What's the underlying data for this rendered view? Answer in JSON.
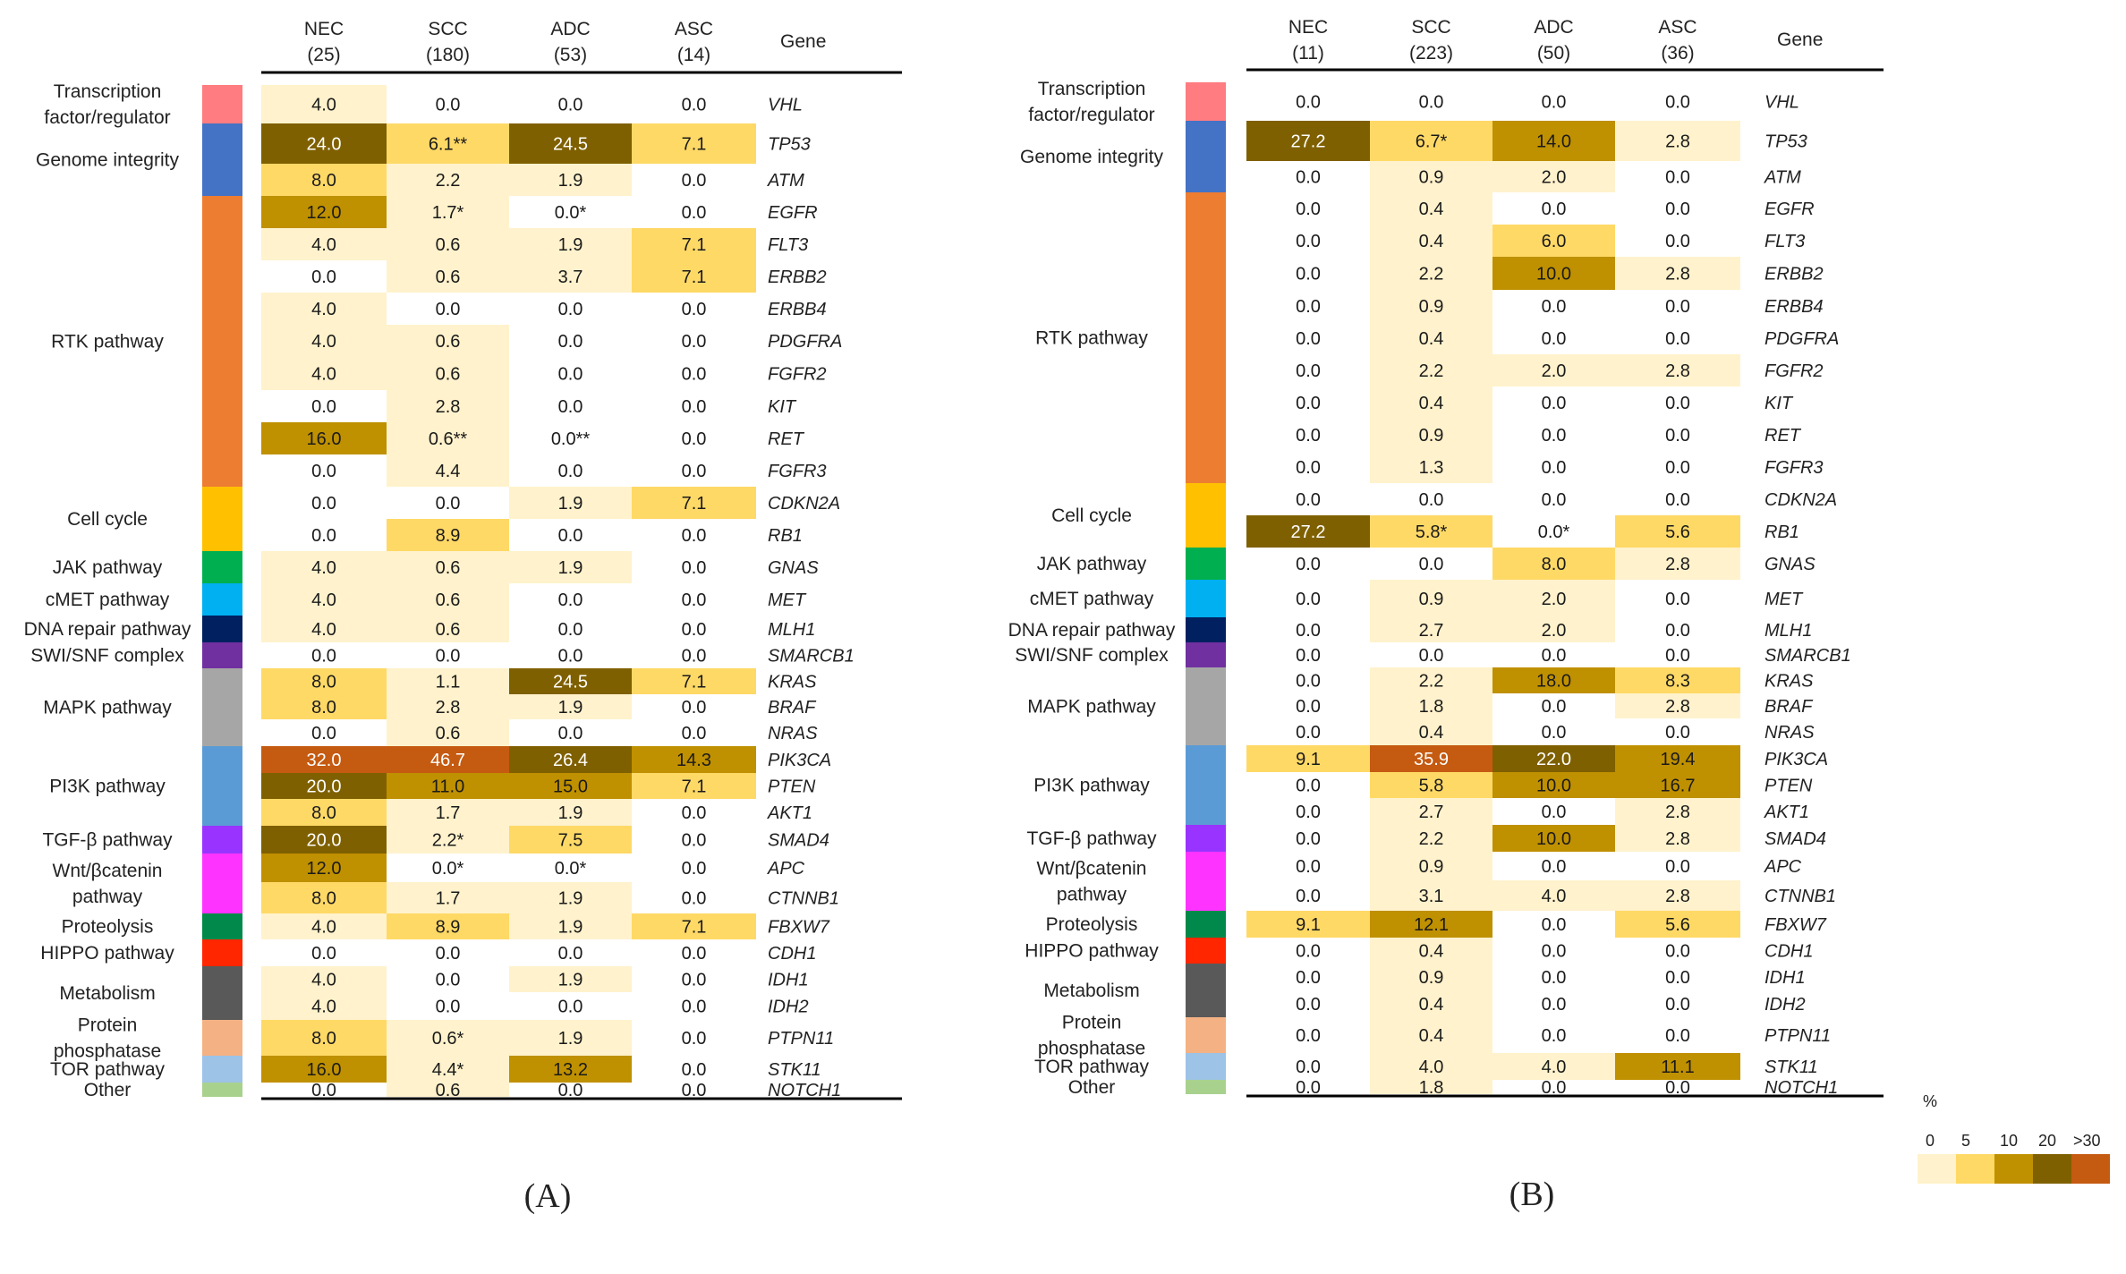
{
  "colors": {
    "scale": [
      "#fff2cc",
      "#ffd966",
      "#bf9000",
      "#7f6000",
      "#c55a11"
    ],
    "rule": "#000000",
    "text_dark": "#1a1a1a",
    "text_light": "#ffffff"
  },
  "legend": {
    "unit": "%",
    "ticks": [
      "0",
      "5",
      "10",
      "20",
      ">30"
    ]
  },
  "categories": [
    {
      "label": [
        "Transcription",
        "factor/regulator"
      ],
      "color": "#ff7c80",
      "rows": [
        0,
        0
      ]
    },
    {
      "label": [
        "Genome integrity"
      ],
      "color": "#4472c4",
      "rows": [
        1,
        2
      ]
    },
    {
      "label": [
        "RTK pathway"
      ],
      "color": "#ed7d31",
      "rows": [
        3,
        11
      ]
    },
    {
      "label": [
        "Cell cycle"
      ],
      "color": "#ffc000",
      "rows": [
        12,
        13
      ]
    },
    {
      "label": [
        "JAK pathway"
      ],
      "color": "#00b050",
      "rows": [
        14,
        14
      ]
    },
    {
      "label": [
        "cMET pathway"
      ],
      "color": "#00b0f0",
      "rows": [
        15,
        15
      ]
    },
    {
      "label": [
        "DNA repair pathway"
      ],
      "color": "#002060",
      "rows": [
        16,
        16
      ]
    },
    {
      "label": [
        "SWI/SNF complex"
      ],
      "color": "#7030a0",
      "rows": [
        17,
        17
      ]
    },
    {
      "label": [
        "MAPK pathway"
      ],
      "color": "#a6a6a6",
      "rows": [
        18,
        20
      ]
    },
    {
      "label": [
        "PI3K pathway"
      ],
      "color": "#5b9bd5",
      "rows": [
        21,
        23
      ]
    },
    {
      "label": [
        "TGF-β pathway"
      ],
      "color": "#9933ff",
      "rows": [
        24,
        24
      ]
    },
    {
      "label": [
        "Wnt/βcatenin",
        "pathway"
      ],
      "color": "#ff33ff",
      "rows": [
        25,
        26
      ]
    },
    {
      "label": [
        "Proteolysis"
      ],
      "color": "#00894a",
      "rows": [
        27,
        27
      ]
    },
    {
      "label": [
        "HIPPO pathway"
      ],
      "color": "#ff2600",
      "rows": [
        28,
        28
      ]
    },
    {
      "label": [
        "Metabolism"
      ],
      "color": "#595959",
      "rows": [
        29,
        30
      ]
    },
    {
      "label": [
        "Protein",
        "phosphatase"
      ],
      "color": "#f4b183",
      "rows": [
        31,
        31
      ]
    },
    {
      "label": [
        "TOR pathway"
      ],
      "color": "#9dc3e6",
      "rows": [
        32,
        32
      ]
    },
    {
      "label": [
        "Other"
      ],
      "color": "#a9d18e",
      "rows": [
        33,
        33
      ]
    }
  ],
  "chart_data": [
    {
      "type": "heatmap",
      "panel_label": "(A)",
      "columns": [
        {
          "name": "NEC",
          "n": "(25)"
        },
        {
          "name": "SCC",
          "n": "(180)"
        },
        {
          "name": "ADC",
          "n": "(53)"
        },
        {
          "name": "ASC",
          "n": "(14)"
        }
      ],
      "gene_header": "Gene",
      "genes": [
        "VHL",
        "TP53",
        "ATM",
        "EGFR",
        "FLT3",
        "ERBB2",
        "ERBB4",
        "PDGFRA",
        "FGFR2",
        "KIT",
        "RET",
        "FGFR3",
        "CDKN2A",
        "RB1",
        "GNAS",
        "MET",
        "MLH1",
        "SMARCB1",
        "KRAS",
        "BRAF",
        "NRAS",
        "PIK3CA",
        "PTEN",
        "AKT1",
        "SMAD4",
        "APC",
        "CTNNB1",
        "FBXW7",
        "CDH1",
        "IDH1",
        "IDH2",
        "PTPN11",
        "STK11",
        "NOTCH1"
      ],
      "values": [
        [
          4.0,
          0.0,
          0.0,
          0.0
        ],
        [
          24.0,
          6.1,
          24.5,
          7.1
        ],
        [
          8.0,
          2.2,
          1.9,
          0.0
        ],
        [
          12.0,
          1.7,
          0.0,
          0.0
        ],
        [
          4.0,
          0.6,
          1.9,
          7.1
        ],
        [
          0.0,
          0.6,
          3.7,
          7.1
        ],
        [
          4.0,
          0.0,
          0.0,
          0.0
        ],
        [
          4.0,
          0.6,
          0.0,
          0.0
        ],
        [
          4.0,
          0.6,
          0.0,
          0.0
        ],
        [
          0.0,
          2.8,
          0.0,
          0.0
        ],
        [
          16.0,
          0.6,
          0.0,
          0.0
        ],
        [
          0.0,
          4.4,
          0.0,
          0.0
        ],
        [
          0.0,
          0.0,
          1.9,
          7.1
        ],
        [
          0.0,
          8.9,
          0.0,
          0.0
        ],
        [
          4.0,
          0.6,
          1.9,
          0.0
        ],
        [
          4.0,
          0.6,
          0.0,
          0.0
        ],
        [
          4.0,
          0.6,
          0.0,
          0.0
        ],
        [
          0.0,
          0.0,
          0.0,
          0.0
        ],
        [
          8.0,
          1.1,
          24.5,
          7.1
        ],
        [
          8.0,
          2.8,
          1.9,
          0.0
        ],
        [
          0.0,
          0.6,
          0.0,
          0.0
        ],
        [
          32.0,
          46.7,
          26.4,
          14.3
        ],
        [
          20.0,
          11.0,
          15.0,
          7.1
        ],
        [
          8.0,
          1.7,
          1.9,
          0.0
        ],
        [
          20.0,
          2.2,
          7.5,
          0.0
        ],
        [
          12.0,
          0.0,
          0.0,
          0.0
        ],
        [
          8.0,
          1.7,
          1.9,
          0.0
        ],
        [
          4.0,
          8.9,
          1.9,
          7.1
        ],
        [
          0.0,
          0.0,
          0.0,
          0.0
        ],
        [
          4.0,
          0.0,
          1.9,
          0.0
        ],
        [
          4.0,
          0.0,
          0.0,
          0.0
        ],
        [
          8.0,
          0.6,
          1.9,
          0.0
        ],
        [
          16.0,
          4.4,
          13.2,
          0.0
        ],
        [
          0.0,
          0.6,
          0.0,
          0.0
        ]
      ],
      "labels": [
        [
          "4.0",
          "0.0",
          "0.0",
          "0.0"
        ],
        [
          "24.0",
          "6.1**",
          "24.5",
          "7.1"
        ],
        [
          "8.0",
          "2.2",
          "1.9",
          "0.0"
        ],
        [
          "12.0",
          "1.7*",
          "0.0*",
          "0.0"
        ],
        [
          "4.0",
          "0.6",
          "1.9",
          "7.1"
        ],
        [
          "0.0",
          "0.6",
          "3.7",
          "7.1"
        ],
        [
          "4.0",
          "0.0",
          "0.0",
          "0.0"
        ],
        [
          "4.0",
          "0.6",
          "0.0",
          "0.0"
        ],
        [
          "4.0",
          "0.6",
          "0.0",
          "0.0"
        ],
        [
          "0.0",
          "2.8",
          "0.0",
          "0.0"
        ],
        [
          "16.0",
          "0.6**",
          "0.0**",
          "0.0"
        ],
        [
          "0.0",
          "4.4",
          "0.0",
          "0.0"
        ],
        [
          "0.0",
          "0.0",
          "1.9",
          "7.1"
        ],
        [
          "0.0",
          "8.9",
          "0.0",
          "0.0"
        ],
        [
          "4.0",
          "0.6",
          "1.9",
          "0.0"
        ],
        [
          "4.0",
          "0.6",
          "0.0",
          "0.0"
        ],
        [
          "4.0",
          "0.6",
          "0.0",
          "0.0"
        ],
        [
          "0.0",
          "0.0",
          "0.0",
          "0.0"
        ],
        [
          "8.0",
          "1.1",
          "24.5",
          "7.1"
        ],
        [
          "8.0",
          "2.8",
          "1.9",
          "0.0"
        ],
        [
          "0.0",
          "0.6",
          "0.0",
          "0.0"
        ],
        [
          "32.0",
          "46.7",
          "26.4",
          "14.3"
        ],
        [
          "20.0",
          "11.0",
          "15.0",
          "7.1"
        ],
        [
          "8.0",
          "1.7",
          "1.9",
          "0.0"
        ],
        [
          "20.0",
          "2.2*",
          "7.5",
          "0.0"
        ],
        [
          "12.0",
          "0.0*",
          "0.0*",
          "0.0"
        ],
        [
          "8.0",
          "1.7",
          "1.9",
          "0.0"
        ],
        [
          "4.0",
          "8.9",
          "1.9",
          "7.1"
        ],
        [
          "0.0",
          "0.0",
          "0.0",
          "0.0"
        ],
        [
          "4.0",
          "0.0",
          "1.9",
          "0.0"
        ],
        [
          "4.0",
          "0.0",
          "0.0",
          "0.0"
        ],
        [
          "8.0",
          "0.6*",
          "1.9",
          "0.0"
        ],
        [
          "16.0",
          "4.4*",
          "13.2",
          "0.0"
        ],
        [
          "0.0",
          "0.6",
          "0.0",
          "0.0"
        ]
      ]
    },
    {
      "type": "heatmap",
      "panel_label": "(B)",
      "columns": [
        {
          "name": "NEC",
          "n": "(11)"
        },
        {
          "name": "SCC",
          "n": "(223)"
        },
        {
          "name": "ADC",
          "n": "(50)"
        },
        {
          "name": "ASC",
          "n": "(36)"
        }
      ],
      "gene_header": "Gene",
      "genes": [
        "VHL",
        "TP53",
        "ATM",
        "EGFR",
        "FLT3",
        "ERBB2",
        "ERBB4",
        "PDGFRA",
        "FGFR2",
        "KIT",
        "RET",
        "FGFR3",
        "CDKN2A",
        "RB1",
        "GNAS",
        "MET",
        "MLH1",
        "SMARCB1",
        "KRAS",
        "BRAF",
        "NRAS",
        "PIK3CA",
        "PTEN",
        "AKT1",
        "SMAD4",
        "APC",
        "CTNNB1",
        "FBXW7",
        "CDH1",
        "IDH1",
        "IDH2",
        "PTPN11",
        "STK11",
        "NOTCH1"
      ],
      "values": [
        [
          0.0,
          0.0,
          0.0,
          0.0
        ],
        [
          27.2,
          6.7,
          14.0,
          2.8
        ],
        [
          0.0,
          0.9,
          2.0,
          0.0
        ],
        [
          0.0,
          0.4,
          0.0,
          0.0
        ],
        [
          0.0,
          0.4,
          6.0,
          0.0
        ],
        [
          0.0,
          2.2,
          10.0,
          2.8
        ],
        [
          0.0,
          0.9,
          0.0,
          0.0
        ],
        [
          0.0,
          0.4,
          0.0,
          0.0
        ],
        [
          0.0,
          2.2,
          2.0,
          2.8
        ],
        [
          0.0,
          0.4,
          0.0,
          0.0
        ],
        [
          0.0,
          0.9,
          0.0,
          0.0
        ],
        [
          0.0,
          1.3,
          0.0,
          0.0
        ],
        [
          0.0,
          0.0,
          0.0,
          0.0
        ],
        [
          27.2,
          5.8,
          0.0,
          5.6
        ],
        [
          0.0,
          0.0,
          8.0,
          2.8
        ],
        [
          0.0,
          0.9,
          2.0,
          0.0
        ],
        [
          0.0,
          2.7,
          2.0,
          0.0
        ],
        [
          0.0,
          0.0,
          0.0,
          0.0
        ],
        [
          0.0,
          2.2,
          18.0,
          8.3
        ],
        [
          0.0,
          1.8,
          0.0,
          2.8
        ],
        [
          0.0,
          0.4,
          0.0,
          0.0
        ],
        [
          9.1,
          35.9,
          22.0,
          19.4
        ],
        [
          0.0,
          5.8,
          10.0,
          16.7
        ],
        [
          0.0,
          2.7,
          0.0,
          2.8
        ],
        [
          0.0,
          2.2,
          10.0,
          2.8
        ],
        [
          0.0,
          0.9,
          0.0,
          0.0
        ],
        [
          0.0,
          3.1,
          4.0,
          2.8
        ],
        [
          9.1,
          12.1,
          0.0,
          5.6
        ],
        [
          0.0,
          0.4,
          0.0,
          0.0
        ],
        [
          0.0,
          0.9,
          0.0,
          0.0
        ],
        [
          0.0,
          0.4,
          0.0,
          0.0
        ],
        [
          0.0,
          0.4,
          0.0,
          0.0
        ],
        [
          0.0,
          4.0,
          4.0,
          11.1
        ],
        [
          0.0,
          1.8,
          0.0,
          0.0
        ]
      ],
      "labels": [
        [
          "0.0",
          "0.0",
          "0.0",
          "0.0"
        ],
        [
          "27.2",
          "6.7*",
          "14.0",
          "2.8"
        ],
        [
          "0.0",
          "0.9",
          "2.0",
          "0.0"
        ],
        [
          "0.0",
          "0.4",
          "0.0",
          "0.0"
        ],
        [
          "0.0",
          "0.4",
          "6.0",
          "0.0"
        ],
        [
          "0.0",
          "2.2",
          "10.0",
          "2.8"
        ],
        [
          "0.0",
          "0.9",
          "0.0",
          "0.0"
        ],
        [
          "0.0",
          "0.4",
          "0.0",
          "0.0"
        ],
        [
          "0.0",
          "2.2",
          "2.0",
          "2.8"
        ],
        [
          "0.0",
          "0.4",
          "0.0",
          "0.0"
        ],
        [
          "0.0",
          "0.9",
          "0.0",
          "0.0"
        ],
        [
          "0.0",
          "1.3",
          "0.0",
          "0.0"
        ],
        [
          "0.0",
          "0.0",
          "0.0",
          "0.0"
        ],
        [
          "27.2",
          "5.8*",
          "0.0*",
          "5.6"
        ],
        [
          "0.0",
          "0.0",
          "8.0",
          "2.8"
        ],
        [
          "0.0",
          "0.9",
          "2.0",
          "0.0"
        ],
        [
          "0.0",
          "2.7",
          "2.0",
          "0.0"
        ],
        [
          "0.0",
          "0.0",
          "0.0",
          "0.0"
        ],
        [
          "0.0",
          "2.2",
          "18.0",
          "8.3"
        ],
        [
          "0.0",
          "1.8",
          "0.0",
          "2.8"
        ],
        [
          "0.0",
          "0.4",
          "0.0",
          "0.0"
        ],
        [
          "9.1",
          "35.9",
          "22.0",
          "19.4"
        ],
        [
          "0.0",
          "5.8",
          "10.0",
          "16.7"
        ],
        [
          "0.0",
          "2.7",
          "0.0",
          "2.8"
        ],
        [
          "0.0",
          "2.2",
          "10.0",
          "2.8"
        ],
        [
          "0.0",
          "0.9",
          "0.0",
          "0.0"
        ],
        [
          "0.0",
          "3.1",
          "4.0",
          "2.8"
        ],
        [
          "9.1",
          "12.1",
          "0.0",
          "5.6"
        ],
        [
          "0.0",
          "0.4",
          "0.0",
          "0.0"
        ],
        [
          "0.0",
          "0.9",
          "0.0",
          "0.0"
        ],
        [
          "0.0",
          "0.4",
          "0.0",
          "0.0"
        ],
        [
          "0.0",
          "0.4",
          "0.0",
          "0.0"
        ],
        [
          "0.0",
          "4.0",
          "4.0",
          "11.1"
        ],
        [
          "0.0",
          "1.8",
          "0.0",
          "0.0"
        ]
      ]
    }
  ]
}
